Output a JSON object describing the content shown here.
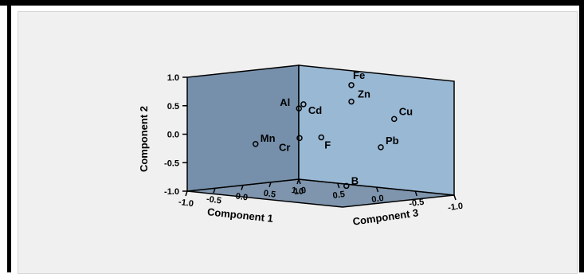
{
  "chart_data": {
    "type": "scatter",
    "subtype": "3d-scatter",
    "title": "",
    "axes": {
      "x": {
        "label": "Component 1",
        "range": [
          -1.0,
          1.0
        ],
        "ticks": [
          "-1.0",
          "-0.5",
          "0.0",
          "0.5",
          "1.0"
        ]
      },
      "y": {
        "label": "Component 2",
        "range": [
          -1.0,
          1.0
        ],
        "ticks": [
          "1.0",
          "0.5",
          "0.0",
          "-0.5",
          "-1.0"
        ]
      },
      "z": {
        "label": "Component 3",
        "range": [
          -1.0,
          1.0
        ],
        "ticks": [
          "1.0",
          "0.5",
          "0.0",
          "-0.5",
          "-1.0"
        ]
      }
    },
    "points": [
      {
        "label": "Fe",
        "x": 0.55,
        "y": 0.84,
        "z": 0.0
      },
      {
        "label": "Zn",
        "x": 0.55,
        "y": 0.55,
        "z": 0.0
      },
      {
        "label": "Cu",
        "x": 0.9,
        "y": 0.25,
        "z": -0.3
      },
      {
        "label": "Al",
        "x": -0.25,
        "y": 0.5,
        "z": 0.1
      },
      {
        "label": "Cd",
        "x": -0.1,
        "y": 0.55,
        "z": 0.15
      },
      {
        "label": "Mn",
        "x": -0.75,
        "y": -0.1,
        "z": 0.3
      },
      {
        "label": "Cr",
        "x": -0.1,
        "y": -0.05,
        "z": 0.2
      },
      {
        "label": "F",
        "x": 0.15,
        "y": -0.05,
        "z": 0.1
      },
      {
        "label": "Pb",
        "x": 0.8,
        "y": -0.25,
        "z": -0.2
      },
      {
        "label": "B",
        "x": 0.6,
        "y": -0.95,
        "z": 0.1
      }
    ],
    "colors": {
      "left_wall": "#7690ab",
      "right_wall": "#99b8d4",
      "floor": "#7f95ad",
      "background": "#f0f0f0"
    },
    "grid": false,
    "legend": "none"
  }
}
